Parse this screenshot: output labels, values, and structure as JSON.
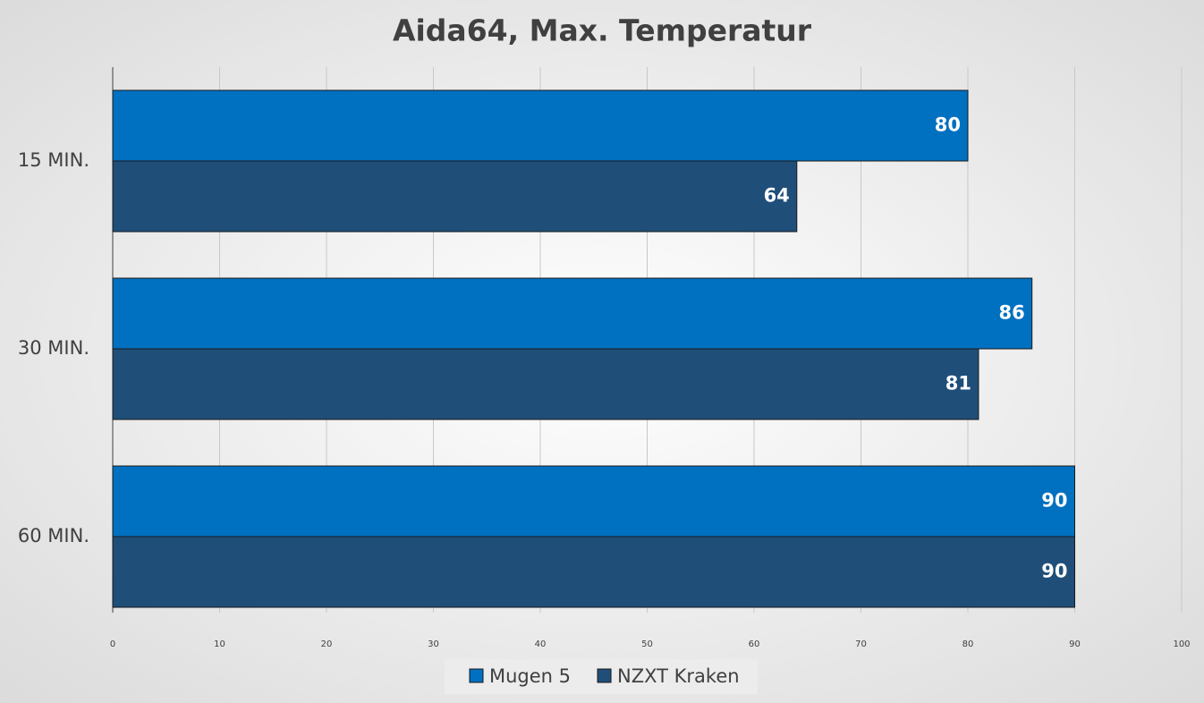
{
  "chart_data": {
    "type": "hbar",
    "title": "Aida64, Max. Temperatur",
    "categories": [
      "15 MIN.",
      "30 MIN.",
      "60 MIN."
    ],
    "series": [
      {
        "name": "Mugen 5",
        "color": "#0070c0",
        "values": [
          80,
          86,
          90
        ]
      },
      {
        "name": "NZXT Kraken",
        "color": "#1f4e79",
        "values": [
          64,
          81,
          90
        ]
      }
    ],
    "xlim": [
      0,
      100
    ],
    "xticks": [
      0,
      10,
      20,
      30,
      40,
      50,
      60,
      70,
      80,
      90,
      100
    ],
    "grid": true,
    "legend": "bottom"
  }
}
